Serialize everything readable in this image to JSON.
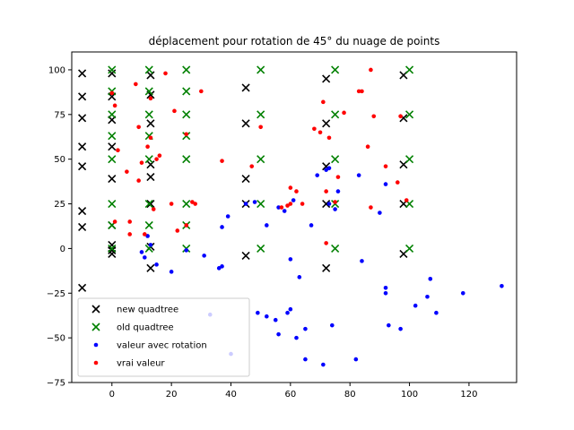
{
  "chart_data": {
    "type": "scatter",
    "title": "déplacement pour rotation de 45° du nuage de points",
    "xlabel": "",
    "ylabel": "",
    "xlim": [
      -13.5,
      136
    ],
    "ylim": [
      -75,
      110
    ],
    "xticks": [
      0,
      20,
      40,
      60,
      80,
      100,
      120
    ],
    "yticks": [
      -75,
      -50,
      -25,
      0,
      25,
      50,
      75,
      100
    ],
    "grid": false,
    "legend_position": "lower-left",
    "series": [
      {
        "name": "new quadtree",
        "marker": "x",
        "color": "#000000",
        "points": [
          [
            -10,
            98
          ],
          [
            -10,
            85
          ],
          [
            -10,
            73
          ],
          [
            -10,
            57
          ],
          [
            -10,
            46
          ],
          [
            -10,
            21
          ],
          [
            -10,
            12
          ],
          [
            -10,
            -22
          ],
          [
            0,
            98
          ],
          [
            0,
            85
          ],
          [
            0,
            72
          ],
          [
            0,
            57
          ],
          [
            0,
            39
          ],
          [
            0,
            13
          ],
          [
            0,
            2
          ],
          [
            0,
            -1
          ],
          [
            0,
            -3
          ],
          [
            13,
            97
          ],
          [
            13,
            86
          ],
          [
            13,
            70
          ],
          [
            13,
            47
          ],
          [
            13,
            40
          ],
          [
            13,
            25
          ],
          [
            13,
            1
          ],
          [
            13,
            -11
          ],
          [
            45,
            90
          ],
          [
            45,
            70
          ],
          [
            45,
            39
          ],
          [
            45,
            25
          ],
          [
            45,
            -4
          ],
          [
            72,
            95
          ],
          [
            72,
            70
          ],
          [
            72,
            46
          ],
          [
            72,
            25
          ],
          [
            72,
            -11
          ],
          [
            98,
            97
          ],
          [
            98,
            73
          ],
          [
            98,
            47
          ],
          [
            98,
            25
          ],
          [
            98,
            -3
          ]
        ]
      },
      {
        "name": "old quadtree",
        "marker": "x",
        "color": "#008000",
        "points": [
          [
            0,
            100
          ],
          [
            0,
            88
          ],
          [
            0,
            75
          ],
          [
            0,
            63
          ],
          [
            0,
            50
          ],
          [
            0,
            25
          ],
          [
            0,
            13
          ],
          [
            0,
            0
          ],
          [
            12.5,
            100
          ],
          [
            12.5,
            88
          ],
          [
            12.5,
            75
          ],
          [
            12.5,
            63
          ],
          [
            12.5,
            50
          ],
          [
            12.5,
            25
          ],
          [
            12.5,
            13
          ],
          [
            12.5,
            0
          ],
          [
            25,
            100
          ],
          [
            25,
            88
          ],
          [
            25,
            75
          ],
          [
            25,
            63
          ],
          [
            25,
            50
          ],
          [
            25,
            25
          ],
          [
            25,
            13
          ],
          [
            25,
            0
          ],
          [
            50,
            100
          ],
          [
            50,
            75
          ],
          [
            50,
            50
          ],
          [
            50,
            25
          ],
          [
            50,
            0
          ],
          [
            75,
            100
          ],
          [
            75,
            75
          ],
          [
            75,
            50
          ],
          [
            75,
            25
          ],
          [
            75,
            0
          ],
          [
            100,
            100
          ],
          [
            100,
            75
          ],
          [
            100,
            50
          ],
          [
            100,
            25
          ],
          [
            100,
            0
          ]
        ]
      },
      {
        "name": "valeur avec rotation",
        "marker": "dot",
        "color": "#0000ff",
        "points": [
          [
            10,
            -2
          ],
          [
            11,
            -5
          ],
          [
            12,
            7
          ],
          [
            13,
            2
          ],
          [
            15,
            -9
          ],
          [
            20,
            -13
          ],
          [
            25,
            -1
          ],
          [
            31,
            -4
          ],
          [
            33,
            -37
          ],
          [
            36,
            -11
          ],
          [
            37,
            -10
          ],
          [
            37,
            12
          ],
          [
            39,
            18
          ],
          [
            40,
            -59
          ],
          [
            45,
            25
          ],
          [
            48,
            26
          ],
          [
            49,
            -36
          ],
          [
            52,
            -38
          ],
          [
            52,
            13
          ],
          [
            55,
            -40
          ],
          [
            56,
            23
          ],
          [
            56,
            -48
          ],
          [
            58,
            21
          ],
          [
            59,
            -36
          ],
          [
            60,
            -34
          ],
          [
            60,
            -6
          ],
          [
            61,
            27
          ],
          [
            62,
            -50
          ],
          [
            63,
            -16
          ],
          [
            65,
            -45
          ],
          [
            65,
            -62
          ],
          [
            67,
            13
          ],
          [
            69,
            41
          ],
          [
            71,
            -65
          ],
          [
            72,
            44
          ],
          [
            73,
            45
          ],
          [
            73,
            25
          ],
          [
            74,
            -43
          ],
          [
            75,
            22
          ],
          [
            76,
            32
          ],
          [
            82,
            -62
          ],
          [
            83,
            41
          ],
          [
            84,
            -7
          ],
          [
            90,
            20
          ],
          [
            92,
            -25
          ],
          [
            92,
            -22
          ],
          [
            92,
            36
          ],
          [
            93,
            -43
          ],
          [
            97,
            -45
          ],
          [
            102,
            -32
          ],
          [
            106,
            -27
          ],
          [
            107,
            -17
          ],
          [
            109,
            -36
          ],
          [
            118,
            -25
          ],
          [
            131,
            -21
          ]
        ]
      },
      {
        "name": "vrai valeur",
        "marker": "dot",
        "color": "#ff0000",
        "points": [
          [
            0,
            87
          ],
          [
            1,
            80
          ],
          [
            1,
            15
          ],
          [
            2,
            55
          ],
          [
            5,
            43
          ],
          [
            6,
            8
          ],
          [
            6,
            15
          ],
          [
            8,
            92
          ],
          [
            9,
            68
          ],
          [
            9,
            38
          ],
          [
            10,
            48
          ],
          [
            11,
            8
          ],
          [
            12,
            57
          ],
          [
            13,
            84
          ],
          [
            13,
            62
          ],
          [
            14,
            22
          ],
          [
            15,
            50
          ],
          [
            16,
            52
          ],
          [
            18,
            98
          ],
          [
            20,
            25
          ],
          [
            21,
            77
          ],
          [
            22,
            10
          ],
          [
            25,
            64
          ],
          [
            25,
            13
          ],
          [
            27,
            26
          ],
          [
            28,
            25
          ],
          [
            30,
            88
          ],
          [
            37,
            49
          ],
          [
            47,
            46
          ],
          [
            50,
            68
          ],
          [
            57,
            23
          ],
          [
            59,
            24
          ],
          [
            60,
            25
          ],
          [
            60,
            34
          ],
          [
            62,
            32
          ],
          [
            64,
            25
          ],
          [
            68,
            67
          ],
          [
            70,
            65
          ],
          [
            71,
            82
          ],
          [
            72,
            32
          ],
          [
            72,
            3
          ],
          [
            73,
            62
          ],
          [
            75,
            26
          ],
          [
            76,
            40
          ],
          [
            78,
            76
          ],
          [
            83,
            88
          ],
          [
            84,
            88
          ],
          [
            86,
            57
          ],
          [
            87,
            100
          ],
          [
            87,
            23
          ],
          [
            88,
            74
          ],
          [
            92,
            46
          ],
          [
            96,
            37
          ],
          [
            97,
            74
          ],
          [
            99,
            27
          ]
        ]
      }
    ]
  }
}
